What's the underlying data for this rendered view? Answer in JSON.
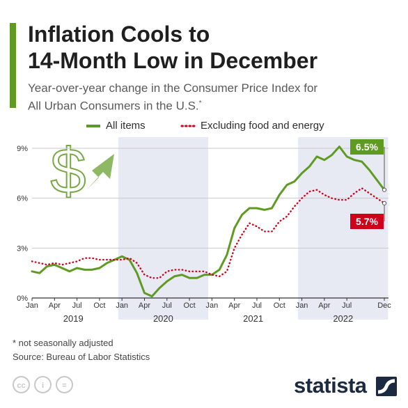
{
  "title_lines": [
    "Inflation Cools to",
    "14-Month Low in December"
  ],
  "subtitle_lines": [
    "Year-over-year change in the Consumer Price Index for",
    "All Urban Consumers in the U.S."
  ],
  "subtitle_mark": "*",
  "colors": {
    "all_items": "#5f9a23",
    "core": "#d0021b",
    "shade": "#e7eaf3",
    "accent": "#5f9a23"
  },
  "footnote": "* not seasonally adjusted",
  "source": "Source: Bureau of Labor Statistics",
  "brand": "statista",
  "license_icons": [
    "cc-icon",
    "attribution-icon",
    "no-derivatives-icon"
  ],
  "license_texts": [
    "cc",
    "i",
    "="
  ],
  "decor_icons": [
    "dollar-icon",
    "up-arrow-icon"
  ],
  "dollar_glyph": "$",
  "chart_data": {
    "type": "line",
    "title": "Inflation Cools to 14-Month Low in December",
    "ylim": [
      0,
      9
    ],
    "yticks": [
      "0%",
      "3%",
      "6%",
      "9%"
    ],
    "month_ticks": [
      "Jan",
      "Apr",
      "Jul",
      "Oct",
      "Jan",
      "Apr",
      "Jul",
      "Oct",
      "Jan",
      "Apr",
      "Jul",
      "Oct",
      "Jan",
      "Apr",
      "Jul",
      "Dec"
    ],
    "years": [
      "2019",
      "2020",
      "2021",
      "2022"
    ],
    "grid": true,
    "legend_position": "top",
    "x_start": "Jan 2019",
    "x_end": "Dec 2022",
    "series": [
      {
        "name": "All items",
        "style": "solid",
        "values": [
          1.6,
          1.5,
          1.9,
          2.0,
          1.8,
          1.6,
          1.8,
          1.7,
          1.7,
          1.8,
          2.1,
          2.3,
          2.5,
          2.3,
          1.5,
          0.3,
          0.1,
          0.6,
          1.0,
          1.3,
          1.4,
          1.2,
          1.2,
          1.4,
          1.4,
          1.7,
          2.6,
          4.2,
          5.0,
          5.4,
          5.4,
          5.3,
          5.4,
          6.2,
          6.8,
          7.0,
          7.5,
          7.9,
          8.5,
          8.3,
          8.6,
          9.1,
          8.5,
          8.3,
          8.2,
          7.7,
          7.1,
          6.5
        ]
      },
      {
        "name": "Excluding food and energy",
        "style": "dotted",
        "values": [
          2.2,
          2.1,
          2.0,
          2.1,
          2.0,
          2.1,
          2.2,
          2.4,
          2.4,
          2.3,
          2.3,
          2.3,
          2.3,
          2.4,
          2.1,
          1.4,
          1.2,
          1.2,
          1.6,
          1.7,
          1.7,
          1.6,
          1.6,
          1.6,
          1.4,
          1.3,
          1.6,
          3.0,
          3.8,
          4.5,
          4.3,
          4.0,
          4.0,
          4.6,
          4.9,
          5.5,
          6.0,
          6.4,
          6.5,
          6.2,
          6.0,
          5.9,
          5.9,
          6.3,
          6.6,
          6.3,
          6.0,
          5.7
        ]
      }
    ],
    "annotations": [
      {
        "series": "All items",
        "label": "6.5%"
      },
      {
        "series": "Excluding food and energy",
        "label": "5.7%"
      }
    ]
  }
}
